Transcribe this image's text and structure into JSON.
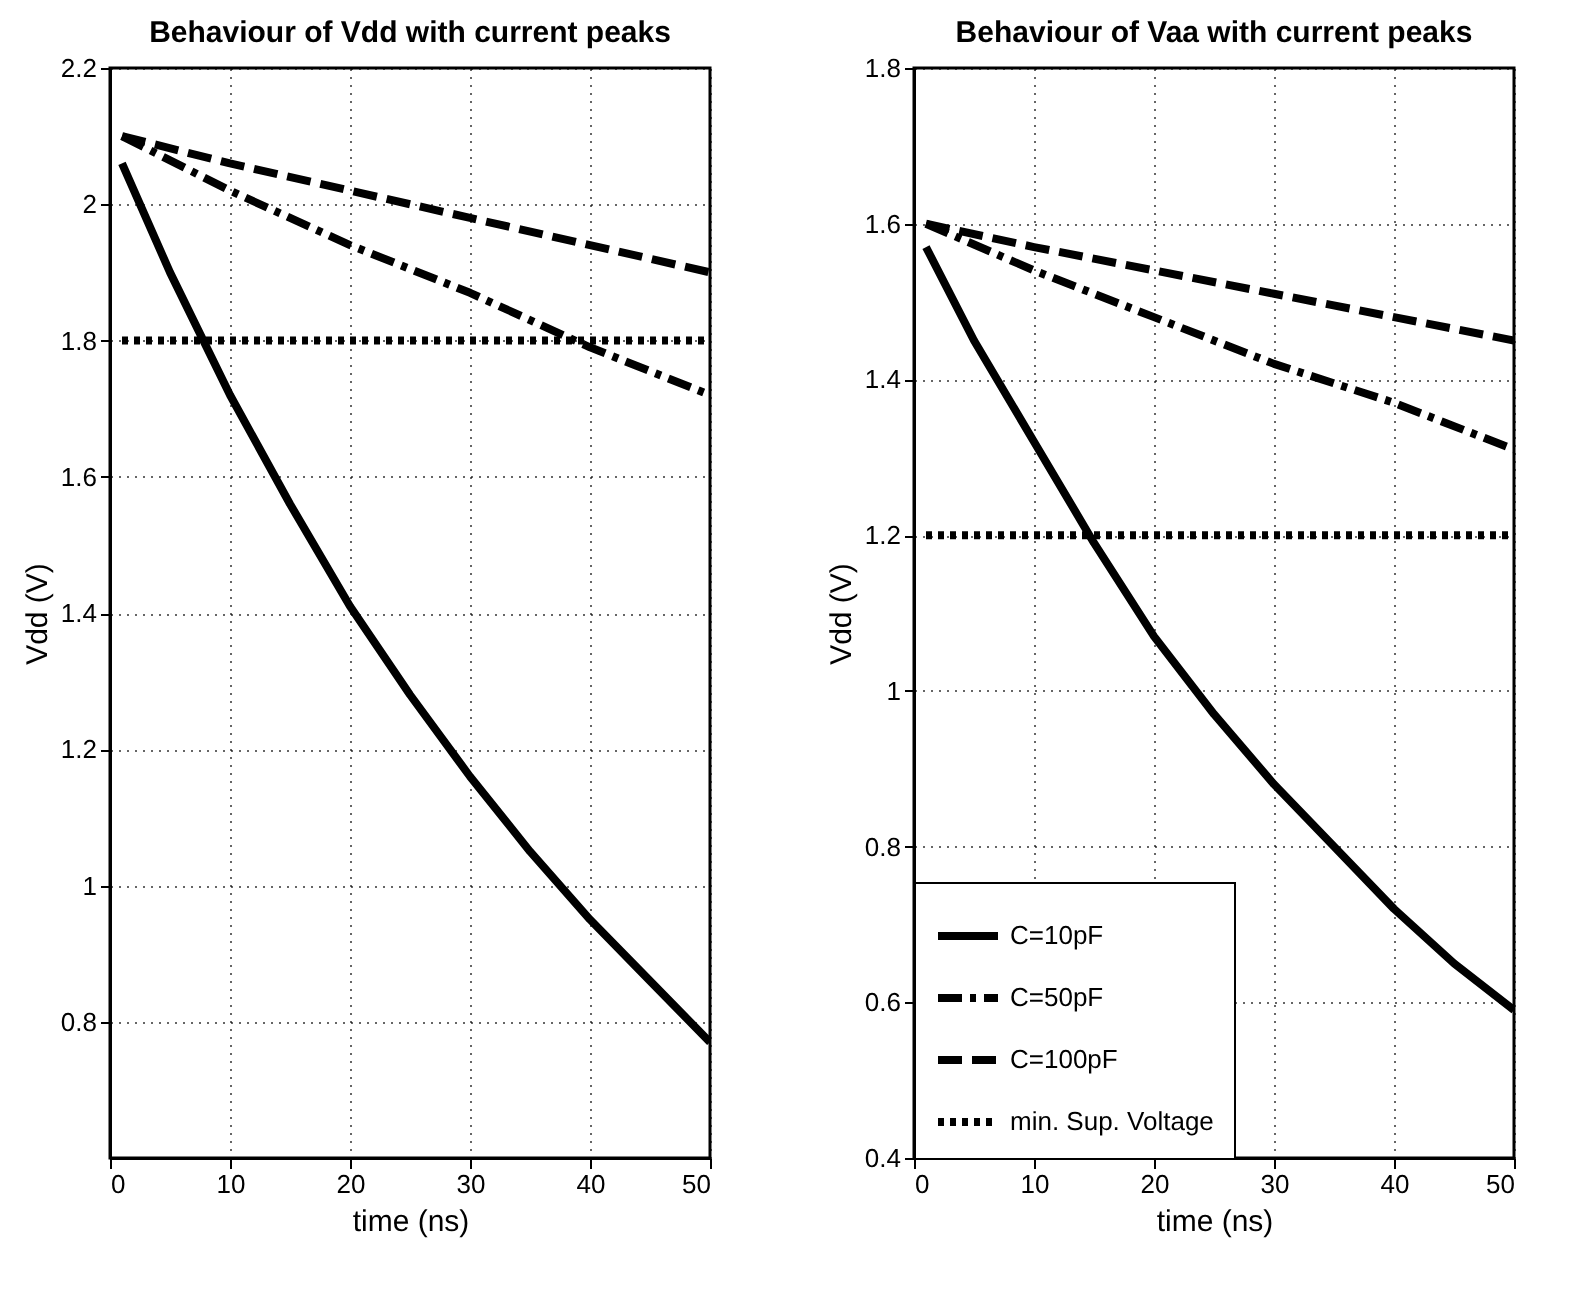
{
  "chart_data": [
    {
      "type": "line",
      "title": "Behaviour of Vdd with current peaks",
      "xlabel": "time (ns)",
      "ylabel": "Vdd (V)",
      "xlim": [
        0,
        50
      ],
      "xticks": [
        0,
        10,
        20,
        30,
        40,
        50
      ],
      "ylim": [
        0.6,
        2.2
      ],
      "yticks": [
        0.8,
        1,
        1.2,
        1.4,
        1.6,
        1.8,
        2,
        2.2
      ],
      "grid": true,
      "legend": false,
      "series": [
        {
          "color": "#000000",
          "line_style": "solid",
          "x": [
            1,
            5,
            10,
            15,
            20,
            25,
            30,
            35,
            40,
            45,
            50
          ],
          "values": [
            2.06,
            1.9,
            1.72,
            1.56,
            1.41,
            1.28,
            1.16,
            1.05,
            0.95,
            0.86,
            0.77
          ]
        },
        {
          "color": "#000000",
          "line_style": "dashdot",
          "x": [
            1,
            10,
            20,
            30,
            40,
            50
          ],
          "values": [
            2.1,
            2.02,
            1.94,
            1.87,
            1.79,
            1.72
          ]
        },
        {
          "color": "#000000",
          "line_style": "dashed",
          "x": [
            1,
            10,
            20,
            30,
            40,
            50
          ],
          "values": [
            2.1,
            2.06,
            2.02,
            1.98,
            1.94,
            1.9
          ]
        },
        {
          "color": "#000000",
          "line_style": "dotted",
          "x": [
            1,
            50
          ],
          "values": [
            1.8,
            1.8
          ]
        }
      ]
    },
    {
      "type": "line",
      "title": "Behaviour of Vaa with current peaks",
      "xlabel": "time (ns)",
      "ylabel": "Vdd (V)",
      "xlim": [
        0,
        50
      ],
      "xticks": [
        0,
        10,
        20,
        30,
        40,
        50
      ],
      "ylim": [
        0.4,
        1.8
      ],
      "yticks": [
        0.4,
        0.6,
        0.8,
        1,
        1.2,
        1.4,
        1.6,
        1.8
      ],
      "grid": true,
      "legend": "bottom left",
      "series": [
        {
          "name": "C=10pF",
          "color": "#000000",
          "line_style": "solid",
          "x": [
            1,
            5,
            10,
            15,
            20,
            25,
            30,
            35,
            40,
            45,
            50
          ],
          "values": [
            1.57,
            1.45,
            1.32,
            1.19,
            1.07,
            0.97,
            0.88,
            0.8,
            0.72,
            0.65,
            0.59
          ]
        },
        {
          "name": "C=50pF",
          "color": "#000000",
          "line_style": "dashdot",
          "x": [
            1,
            10,
            20,
            30,
            40,
            50
          ],
          "values": [
            1.6,
            1.54,
            1.48,
            1.42,
            1.37,
            1.31
          ]
        },
        {
          "name": "C=100pF",
          "color": "#000000",
          "line_style": "dashed",
          "x": [
            1,
            10,
            20,
            30,
            40,
            50
          ],
          "values": [
            1.6,
            1.57,
            1.54,
            1.51,
            1.48,
            1.45
          ]
        },
        {
          "name": "min. Sup. Voltage",
          "color": "#000000",
          "line_style": "dotted",
          "x": [
            1,
            50
          ],
          "values": [
            1.2,
            1.2
          ]
        }
      ]
    }
  ]
}
